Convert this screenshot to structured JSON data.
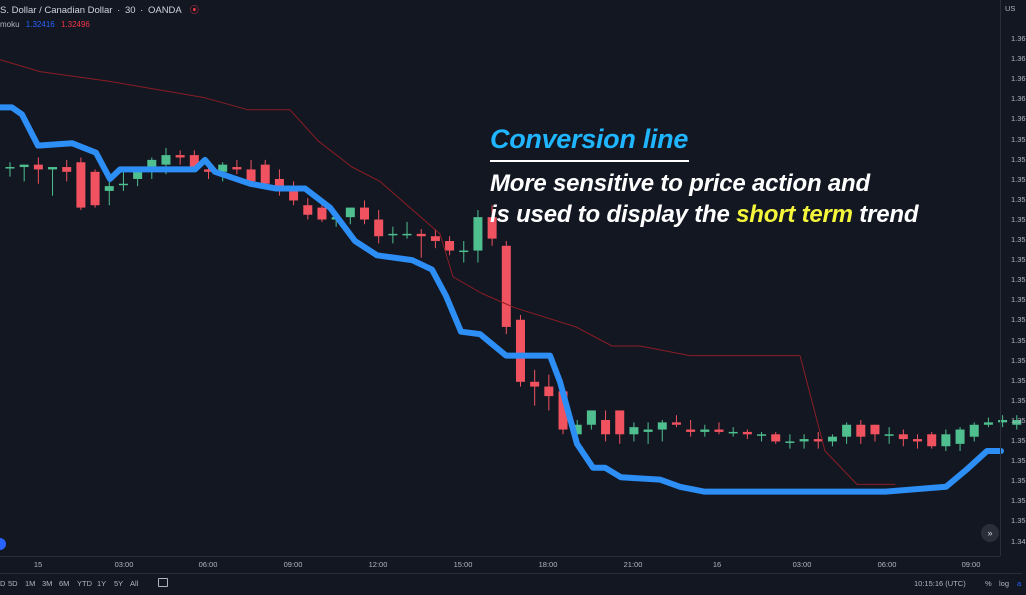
{
  "header": {
    "symbol_title": "S. Dollar / Canadian Dollar",
    "interval": "30",
    "exchange": "OANDA",
    "indicator_name": "moku",
    "indicator_value_1": "1.32416",
    "indicator_value_2": "1.32496",
    "corner_label": "US"
  },
  "price_axis": {
    "ticks": [
      "1.36",
      "1.36",
      "1.36",
      "1.36",
      "1.36",
      "1.35",
      "1.35",
      "1.35",
      "1.35",
      "1.35",
      "1.35",
      "1.35",
      "1.35",
      "1.35",
      "1.35",
      "1.35",
      "1.35",
      "1.35",
      "1.35",
      "1.35",
      "1.35",
      "1.35",
      "1.35",
      "1.35",
      "1.35",
      "1.34"
    ]
  },
  "time_axis": {
    "ticks": [
      "15",
      "03:00",
      "06:00",
      "09:00",
      "12:00",
      "15:00",
      "18:00",
      "21:00",
      "16",
      "03:00",
      "06:00",
      "09:00"
    ]
  },
  "bottom_bar": {
    "ranges": [
      "D",
      "5D",
      "1M",
      "3M",
      "6M",
      "YTD",
      "1Y",
      "5Y",
      "All"
    ],
    "clock": "10:15:16 (UTC)",
    "percent_label": "%",
    "log_label": "log",
    "auto_label": "a"
  },
  "annotation": {
    "title": "Conversion line",
    "line1": "More sensitive to price action and",
    "line2_a": "is used to display the ",
    "line2_highlight": "short term",
    "line2_b": " trend"
  },
  "scroll_button": "»",
  "chart_data": {
    "type": "candlestick",
    "colors": {
      "up": "#26a69a",
      "up_body": "#4fbf8f",
      "down": "#f23645",
      "down_body": "#f0525f",
      "conversion_line": "#2d8ef5",
      "base_line": "#8a1d24"
    },
    "candles": [
      [
        "05:00",
        1.3552,
        1.3554,
        1.3548,
        1.3552
      ],
      [
        "05:30",
        1.3552,
        1.3553,
        1.3546,
        1.3553
      ],
      [
        "06:00",
        1.3553,
        1.3556,
        1.3545,
        1.3551
      ],
      [
        "06:30",
        1.3551,
        1.3552,
        1.354,
        1.3552
      ],
      [
        "07:00",
        1.3552,
        1.3555,
        1.3546,
        1.355
      ],
      [
        "07:30",
        1.3554,
        1.3556,
        1.3534,
        1.3535
      ],
      [
        "08:00",
        1.355,
        1.3551,
        1.3535,
        1.3536
      ],
      [
        "08:30",
        1.3542,
        1.3546,
        1.3536,
        1.3544
      ],
      [
        "09:00",
        1.3545,
        1.355,
        1.3542,
        1.3545
      ],
      [
        "09:30",
        1.3547,
        1.3551,
        1.3544,
        1.355
      ],
      [
        "10:00",
        1.3552,
        1.3556,
        1.3547,
        1.3555
      ],
      [
        "10:30",
        1.3553,
        1.356,
        1.3549,
        1.3557
      ],
      [
        "11:00",
        1.3557,
        1.3559,
        1.3553,
        1.3556
      ],
      [
        "11:30",
        1.3557,
        1.3559,
        1.3551,
        1.3552
      ],
      [
        "12:00",
        1.3551,
        1.3553,
        1.3547,
        1.355
      ],
      [
        "12:30",
        1.355,
        1.3554,
        1.3546,
        1.3553
      ],
      [
        "13:00",
        1.3552,
        1.3555,
        1.3549,
        1.3551
      ],
      [
        "13:30",
        1.3551,
        1.3555,
        1.3544,
        1.3546
      ],
      [
        "14:00",
        1.3553,
        1.3555,
        1.3544,
        1.3545
      ],
      [
        "14:30",
        1.3547,
        1.3551,
        1.354,
        1.3542
      ],
      [
        "15:00",
        1.3544,
        1.3546,
        1.3536,
        1.3538
      ],
      [
        "15:30",
        1.3536,
        1.3539,
        1.353,
        1.3532
      ],
      [
        "16:00",
        1.3535,
        1.3537,
        1.3529,
        1.353
      ],
      [
        "16:30",
        1.353,
        1.3532,
        1.3527,
        1.3531
      ],
      [
        "17:00",
        1.3531,
        1.3535,
        1.3528,
        1.3535
      ],
      [
        "17:30",
        1.3535,
        1.3538,
        1.3528,
        1.353
      ],
      [
        "18:00",
        1.353,
        1.3534,
        1.352,
        1.3523
      ],
      [
        "18:30",
        1.3524,
        1.3527,
        1.352,
        1.3524
      ],
      [
        "19:00",
        1.3524,
        1.3529,
        1.3522,
        1.3524
      ],
      [
        "19:30",
        1.3524,
        1.3526,
        1.3514,
        1.3523
      ],
      [
        "20:00",
        1.3523,
        1.3526,
        1.3518,
        1.3521
      ],
      [
        "20:30",
        1.3521,
        1.3523,
        1.3515,
        1.3517
      ],
      [
        "21:00",
        1.3517,
        1.3521,
        1.3512,
        1.3517
      ],
      [
        "21:30",
        1.3517,
        1.3534,
        1.3512,
        1.3531
      ],
      [
        "22:00",
        1.3531,
        1.3536,
        1.3519,
        1.3522
      ],
      [
        "22:30",
        1.3519,
        1.3521,
        1.3482,
        1.3485
      ],
      [
        "23:00",
        1.3488,
        1.349,
        1.346,
        1.3462
      ],
      [
        "23:30",
        1.3462,
        1.3467,
        1.3452,
        1.346
      ],
      [
        "00:00",
        1.346,
        1.3465,
        1.345,
        1.3456
      ],
      [
        "00:30",
        1.3458,
        1.3461,
        1.344,
        1.3442
      ],
      [
        "01:00",
        1.344,
        1.3446,
        1.3437,
        1.3444
      ],
      [
        "01:30",
        1.3444,
        1.345,
        1.3442,
        1.345
      ],
      [
        "02:00",
        1.3446,
        1.345,
        1.3437,
        1.344
      ],
      [
        "02:30",
        1.345,
        1.345,
        1.3436,
        1.344
      ],
      [
        "03:00",
        1.344,
        1.3445,
        1.3437,
        1.3443
      ],
      [
        "03:30",
        1.3441,
        1.3445,
        1.3436,
        1.3442
      ],
      [
        "04:00",
        1.3442,
        1.3446,
        1.3437,
        1.3445
      ],
      [
        "04:30",
        1.3445,
        1.3448,
        1.3443,
        1.3444
      ],
      [
        "05:00",
        1.3442,
        1.3446,
        1.3439,
        1.3441
      ],
      [
        "05:30",
        1.3441,
        1.3444,
        1.3439,
        1.3442
      ],
      [
        "06:00",
        1.3442,
        1.3445,
        1.344,
        1.3441
      ],
      [
        "06:30",
        1.3441,
        1.3443,
        1.3439,
        1.3441
      ],
      [
        "07:00",
        1.3441,
        1.3442,
        1.3438,
        1.344
      ],
      [
        "07:30",
        1.344,
        1.3441,
        1.3437,
        1.344
      ],
      [
        "08:00",
        1.344,
        1.3441,
        1.3436,
        1.3437
      ],
      [
        "08:30",
        1.3437,
        1.344,
        1.3434,
        1.3437
      ],
      [
        "09:00",
        1.3437,
        1.344,
        1.3434,
        1.3438
      ],
      [
        "09:30",
        1.3438,
        1.3441,
        1.3434,
        1.3437
      ],
      [
        "10:00",
        1.3437,
        1.344,
        1.3435,
        1.3439
      ],
      [
        "10:30",
        1.3439,
        1.3445,
        1.3436,
        1.3444
      ],
      [
        "11:00",
        1.3444,
        1.3446,
        1.3436,
        1.3439
      ],
      [
        "11:30",
        1.3444,
        1.3444,
        1.3437,
        1.344
      ],
      [
        "12:00",
        1.344,
        1.3443,
        1.3436,
        1.344
      ],
      [
        "12:30",
        1.344,
        1.3442,
        1.3435,
        1.3438
      ],
      [
        "13:00",
        1.3438,
        1.344,
        1.3434,
        1.3437
      ],
      [
        "13:30",
        1.344,
        1.3441,
        1.3434,
        1.3435
      ],
      [
        "14:00",
        1.3435,
        1.3442,
        1.3433,
        1.344
      ],
      [
        "14:30",
        1.3436,
        1.3443,
        1.3433,
        1.3442
      ],
      [
        "15:00",
        1.3439,
        1.3445,
        1.3437,
        1.3444
      ],
      [
        "15:30",
        1.3444,
        1.3447,
        1.3443,
        1.3445
      ],
      [
        "16:00",
        1.3445,
        1.3448,
        1.3443,
        1.3446
      ],
      [
        "16:30",
        1.3444,
        1.3448,
        1.3442,
        1.3446
      ],
      [
        "17:00",
        1.3446,
        1.3456,
        1.3444,
        1.3454
      ],
      [
        "17:30",
        1.3454,
        1.3462,
        1.3452,
        1.3461
      ],
      [
        "18:00",
        1.3461,
        1.347,
        1.3459,
        1.3468
      ],
      [
        "18:30",
        1.3466,
        1.3474,
        1.3464,
        1.3471
      ],
      [
        "19:00",
        1.3471,
        1.3475,
        1.3465,
        1.3472
      ]
    ],
    "conversion_line": [
      [
        0,
        1.3577
      ],
      [
        12,
        1.3577
      ],
      [
        22,
        1.3574
      ],
      [
        38,
        1.3561
      ],
      [
        72,
        1.3562
      ],
      [
        96,
        1.3558
      ],
      [
        110,
        1.3547
      ],
      [
        120,
        1.3551
      ],
      [
        165,
        1.3551
      ],
      [
        195,
        1.3551
      ],
      [
        205,
        1.3555
      ],
      [
        215,
        1.355
      ],
      [
        250,
        1.3545
      ],
      [
        276,
        1.3543
      ],
      [
        305,
        1.3543
      ],
      [
        330,
        1.3535
      ],
      [
        355,
        1.3521
      ],
      [
        377,
        1.3515
      ],
      [
        412,
        1.3513
      ],
      [
        432,
        1.3509
      ],
      [
        446,
        1.3498
      ],
      [
        461,
        1.3483
      ],
      [
        480,
        1.3482
      ],
      [
        506,
        1.3473
      ],
      [
        550,
        1.3473
      ],
      [
        560,
        1.3462
      ],
      [
        577,
        1.3436
      ],
      [
        593,
        1.3426
      ],
      [
        605,
        1.3426
      ],
      [
        621,
        1.3422
      ],
      [
        660,
        1.3421
      ],
      [
        680,
        1.3418
      ],
      [
        704,
        1.3416
      ],
      [
        740,
        1.3416
      ],
      [
        790,
        1.3416
      ],
      [
        850,
        1.3416
      ],
      [
        886,
        1.3416
      ],
      [
        946,
        1.3418
      ],
      [
        966,
        1.3425
      ],
      [
        987,
        1.3433
      ],
      [
        1001,
        1.3433
      ]
    ],
    "base_line": [
      [
        0,
        1.3597
      ],
      [
        40,
        1.3592
      ],
      [
        108,
        1.3588
      ],
      [
        205,
        1.3581
      ],
      [
        248,
        1.3576
      ],
      [
        290,
        1.3576
      ],
      [
        318,
        1.3563
      ],
      [
        352,
        1.3552
      ],
      [
        380,
        1.3546
      ],
      [
        440,
        1.3524
      ],
      [
        453,
        1.3506
      ],
      [
        482,
        1.3499
      ],
      [
        515,
        1.3493
      ],
      [
        576,
        1.3485
      ],
      [
        612,
        1.3477
      ],
      [
        640,
        1.3477
      ],
      [
        690,
        1.3473
      ],
      [
        800,
        1.3473
      ],
      [
        825,
        1.3433
      ],
      [
        857,
        1.3419
      ],
      [
        895,
        1.3419
      ]
    ],
    "ylim": [
      1.3389,
      1.3622
    ],
    "xlabel": "",
    "ylabel": ""
  }
}
